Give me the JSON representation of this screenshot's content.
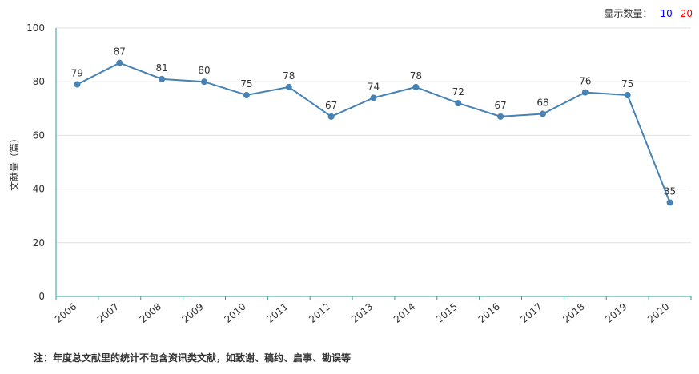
{
  "controls": {
    "label": "显示数量：",
    "options": [
      "10",
      "20"
    ]
  },
  "footnote": "注：年度总文献里的统计不包含资讯类文献，如致谢、稿约、启事、勘误等",
  "colors": {
    "line": "#4682b4",
    "axis": "#2aa198",
    "grid": "#e0e0e0",
    "option_10": "#0000ff",
    "option_20": "#ff0000"
  },
  "chart_data": {
    "type": "line",
    "title": "",
    "xlabel": "",
    "ylabel": "文献量（篇）",
    "ylim": [
      0,
      100
    ],
    "yticks": [
      0,
      20,
      40,
      60,
      80,
      100
    ],
    "grid": true,
    "categories": [
      "2006",
      "2007",
      "2008",
      "2009",
      "2010",
      "2011",
      "2012",
      "2013",
      "2014",
      "2015",
      "2016",
      "2017",
      "2018",
      "2019",
      "2020"
    ],
    "series": [
      {
        "values": [
          79,
          87,
          81,
          80,
          75,
          78,
          67,
          74,
          78,
          72,
          67,
          68,
          76,
          75,
          35
        ]
      }
    ]
  }
}
